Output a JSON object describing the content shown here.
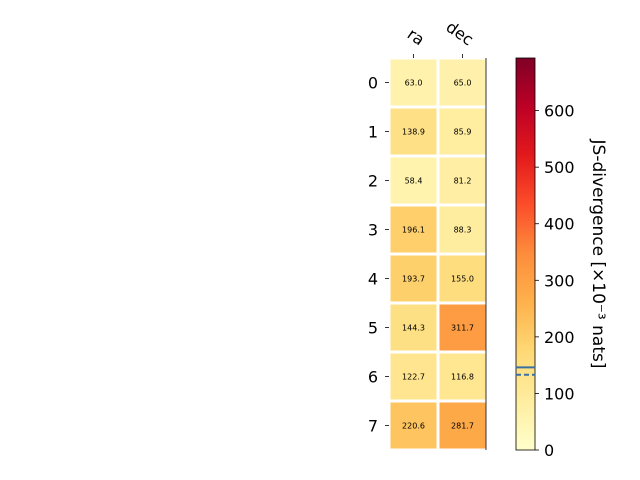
{
  "chart_data": {
    "type": "heatmap",
    "columns": [
      "ra",
      "dec"
    ],
    "rows": [
      "0",
      "1",
      "2",
      "3",
      "4",
      "5",
      "6",
      "7"
    ],
    "values": [
      [
        63.0,
        65.0
      ],
      [
        138.9,
        85.9
      ],
      [
        58.4,
        81.2
      ],
      [
        196.1,
        88.3
      ],
      [
        193.7,
        155.0
      ],
      [
        144.3,
        311.7
      ],
      [
        122.7,
        116.8
      ],
      [
        220.6,
        281.7
      ]
    ],
    "cell_labels": [
      [
        "63.0",
        "65.0"
      ],
      [
        "138.9",
        "85.9"
      ],
      [
        "58.4",
        "81.2"
      ],
      [
        "196.1",
        "88.3"
      ],
      [
        "193.7",
        "155.0"
      ],
      [
        "144.3",
        "311.7"
      ],
      [
        "122.7",
        "116.8"
      ],
      [
        "220.6",
        "281.7"
      ]
    ],
    "colorbar": {
      "label": "JS-divergence [×10⁻³ nats]",
      "range": [
        0,
        693
      ],
      "ticks": [
        "0",
        "100",
        "200",
        "300",
        "400",
        "500",
        "600"
      ],
      "tick_values": [
        0,
        100,
        200,
        300,
        400,
        500,
        600
      ],
      "colormap": "YlOrRd",
      "markers": [
        {
          "style": "solid",
          "value": 146,
          "color": "#3b6fa0"
        },
        {
          "style": "dashed",
          "value": 133,
          "color": "#3b6fa0"
        }
      ]
    }
  }
}
